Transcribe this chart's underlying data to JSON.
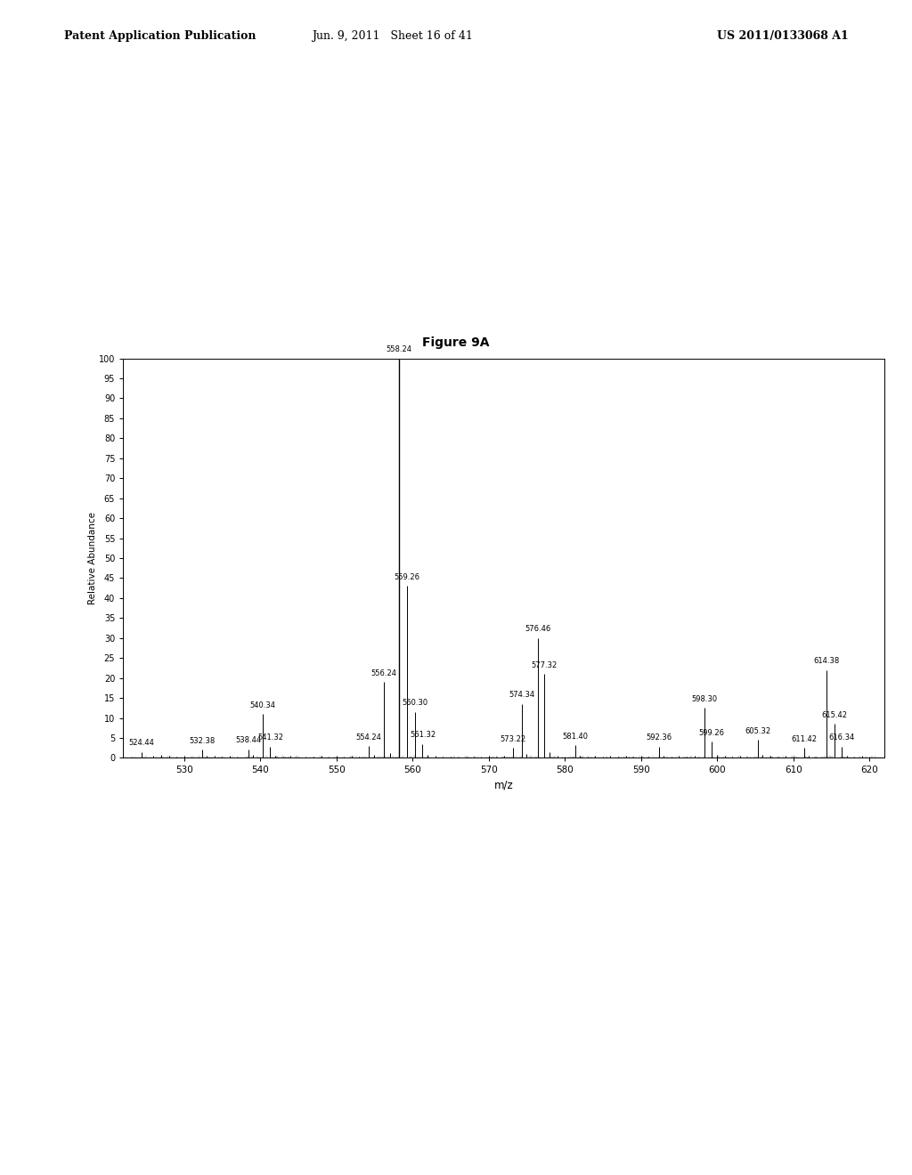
{
  "title": "Figure 9A",
  "xlabel": "m/z",
  "ylabel": "Relative Abundance",
  "xlim": [
    522,
    622
  ],
  "ylim": [
    0,
    100
  ],
  "xticks": [
    530,
    540,
    550,
    560,
    570,
    580,
    590,
    600,
    610,
    620
  ],
  "yticks": [
    0,
    5,
    10,
    15,
    20,
    25,
    30,
    35,
    40,
    45,
    50,
    55,
    60,
    65,
    70,
    75,
    80,
    85,
    90,
    95,
    100
  ],
  "header_left": "Patent Application Publication",
  "header_mid": "Jun. 9, 2011   Sheet 16 of 41",
  "header_right": "US 2011/0133068 A1",
  "peaks": [
    {
      "mz": 524.44,
      "intensity": 1.5,
      "label": "524.44",
      "label_show": true
    },
    {
      "mz": 526.0,
      "intensity": 0.5,
      "label": "",
      "label_show": false
    },
    {
      "mz": 527.0,
      "intensity": 0.8,
      "label": "",
      "label_show": false
    },
    {
      "mz": 528.0,
      "intensity": 0.6,
      "label": "",
      "label_show": false
    },
    {
      "mz": 529.0,
      "intensity": 0.4,
      "label": "",
      "label_show": false
    },
    {
      "mz": 530.0,
      "intensity": 0.5,
      "label": "",
      "label_show": false
    },
    {
      "mz": 531.0,
      "intensity": 0.3,
      "label": "",
      "label_show": false
    },
    {
      "mz": 532.38,
      "intensity": 2.0,
      "label": "532.38",
      "label_show": true
    },
    {
      "mz": 533.0,
      "intensity": 0.5,
      "label": "",
      "label_show": false
    },
    {
      "mz": 534.0,
      "intensity": 0.6,
      "label": "",
      "label_show": false
    },
    {
      "mz": 535.0,
      "intensity": 0.4,
      "label": "",
      "label_show": false
    },
    {
      "mz": 536.0,
      "intensity": 0.5,
      "label": "",
      "label_show": false
    },
    {
      "mz": 537.0,
      "intensity": 0.3,
      "label": "",
      "label_show": false
    },
    {
      "mz": 538.44,
      "intensity": 2.2,
      "label": "538.44",
      "label_show": true
    },
    {
      "mz": 539.0,
      "intensity": 0.7,
      "label": "",
      "label_show": false
    },
    {
      "mz": 540.34,
      "intensity": 11.0,
      "label": "540.34",
      "label_show": true
    },
    {
      "mz": 541.32,
      "intensity": 2.8,
      "label": "541.32",
      "label_show": true
    },
    {
      "mz": 542.0,
      "intensity": 0.6,
      "label": "",
      "label_show": false
    },
    {
      "mz": 543.0,
      "intensity": 0.4,
      "label": "",
      "label_show": false
    },
    {
      "mz": 544.0,
      "intensity": 0.5,
      "label": "",
      "label_show": false
    },
    {
      "mz": 545.0,
      "intensity": 0.3,
      "label": "",
      "label_show": false
    },
    {
      "mz": 546.0,
      "intensity": 0.4,
      "label": "",
      "label_show": false
    },
    {
      "mz": 547.0,
      "intensity": 0.3,
      "label": "",
      "label_show": false
    },
    {
      "mz": 548.0,
      "intensity": 0.5,
      "label": "",
      "label_show": false
    },
    {
      "mz": 549.0,
      "intensity": 0.4,
      "label": "",
      "label_show": false
    },
    {
      "mz": 550.0,
      "intensity": 0.5,
      "label": "",
      "label_show": false
    },
    {
      "mz": 551.0,
      "intensity": 0.4,
      "label": "",
      "label_show": false
    },
    {
      "mz": 552.0,
      "intensity": 0.5,
      "label": "",
      "label_show": false
    },
    {
      "mz": 553.0,
      "intensity": 0.4,
      "label": "",
      "label_show": false
    },
    {
      "mz": 554.24,
      "intensity": 3.0,
      "label": "554.24",
      "label_show": true
    },
    {
      "mz": 555.0,
      "intensity": 0.8,
      "label": "",
      "label_show": false
    },
    {
      "mz": 556.24,
      "intensity": 19.0,
      "label": "556.24",
      "label_show": true
    },
    {
      "mz": 557.0,
      "intensity": 1.2,
      "label": "",
      "label_show": false
    },
    {
      "mz": 558.24,
      "intensity": 100.0,
      "label": "558.24",
      "label_show": true
    },
    {
      "mz": 559.26,
      "intensity": 43.0,
      "label": "559.26",
      "label_show": true
    },
    {
      "mz": 560.3,
      "intensity": 11.5,
      "label": "560.30",
      "label_show": true
    },
    {
      "mz": 561.32,
      "intensity": 3.5,
      "label": "561.32",
      "label_show": true
    },
    {
      "mz": 562.0,
      "intensity": 0.8,
      "label": "",
      "label_show": false
    },
    {
      "mz": 563.0,
      "intensity": 0.5,
      "label": "",
      "label_show": false
    },
    {
      "mz": 564.0,
      "intensity": 0.4,
      "label": "",
      "label_show": false
    },
    {
      "mz": 565.0,
      "intensity": 0.3,
      "label": "",
      "label_show": false
    },
    {
      "mz": 566.0,
      "intensity": 0.4,
      "label": "",
      "label_show": false
    },
    {
      "mz": 567.0,
      "intensity": 0.3,
      "label": "",
      "label_show": false
    },
    {
      "mz": 568.0,
      "intensity": 0.4,
      "label": "",
      "label_show": false
    },
    {
      "mz": 569.0,
      "intensity": 0.3,
      "label": "",
      "label_show": false
    },
    {
      "mz": 570.0,
      "intensity": 0.5,
      "label": "",
      "label_show": false
    },
    {
      "mz": 571.0,
      "intensity": 0.4,
      "label": "",
      "label_show": false
    },
    {
      "mz": 572.0,
      "intensity": 0.5,
      "label": "",
      "label_show": false
    },
    {
      "mz": 573.22,
      "intensity": 2.5,
      "label": "573.22",
      "label_show": true
    },
    {
      "mz": 574.34,
      "intensity": 13.5,
      "label": "574.34",
      "label_show": true
    },
    {
      "mz": 575.0,
      "intensity": 1.0,
      "label": "",
      "label_show": false
    },
    {
      "mz": 576.46,
      "intensity": 30.0,
      "label": "576.46",
      "label_show": true
    },
    {
      "mz": 577.32,
      "intensity": 21.0,
      "label": "577.32",
      "label_show": true
    },
    {
      "mz": 578.0,
      "intensity": 1.5,
      "label": "",
      "label_show": false
    },
    {
      "mz": 579.0,
      "intensity": 0.5,
      "label": "",
      "label_show": false
    },
    {
      "mz": 580.0,
      "intensity": 0.4,
      "label": "",
      "label_show": false
    },
    {
      "mz": 581.4,
      "intensity": 3.2,
      "label": "581.40",
      "label_show": true
    },
    {
      "mz": 582.0,
      "intensity": 0.5,
      "label": "",
      "label_show": false
    },
    {
      "mz": 583.0,
      "intensity": 0.4,
      "label": "",
      "label_show": false
    },
    {
      "mz": 584.0,
      "intensity": 0.5,
      "label": "",
      "label_show": false
    },
    {
      "mz": 585.0,
      "intensity": 0.4,
      "label": "",
      "label_show": false
    },
    {
      "mz": 586.0,
      "intensity": 0.5,
      "label": "",
      "label_show": false
    },
    {
      "mz": 587.0,
      "intensity": 0.4,
      "label": "",
      "label_show": false
    },
    {
      "mz": 588.0,
      "intensity": 0.5,
      "label": "",
      "label_show": false
    },
    {
      "mz": 589.0,
      "intensity": 0.4,
      "label": "",
      "label_show": false
    },
    {
      "mz": 590.0,
      "intensity": 0.5,
      "label": "",
      "label_show": false
    },
    {
      "mz": 591.0,
      "intensity": 0.4,
      "label": "",
      "label_show": false
    },
    {
      "mz": 592.36,
      "intensity": 2.8,
      "label": "592.36",
      "label_show": true
    },
    {
      "mz": 593.0,
      "intensity": 0.5,
      "label": "",
      "label_show": false
    },
    {
      "mz": 594.0,
      "intensity": 0.4,
      "label": "",
      "label_show": false
    },
    {
      "mz": 595.0,
      "intensity": 0.5,
      "label": "",
      "label_show": false
    },
    {
      "mz": 596.0,
      "intensity": 0.4,
      "label": "",
      "label_show": false
    },
    {
      "mz": 597.0,
      "intensity": 0.5,
      "label": "",
      "label_show": false
    },
    {
      "mz": 598.3,
      "intensity": 12.5,
      "label": "598.30",
      "label_show": true
    },
    {
      "mz": 599.26,
      "intensity": 4.0,
      "label": "599.26",
      "label_show": true
    },
    {
      "mz": 600.0,
      "intensity": 0.8,
      "label": "",
      "label_show": false
    },
    {
      "mz": 601.0,
      "intensity": 0.5,
      "label": "",
      "label_show": false
    },
    {
      "mz": 602.0,
      "intensity": 0.4,
      "label": "",
      "label_show": false
    },
    {
      "mz": 603.0,
      "intensity": 0.5,
      "label": "",
      "label_show": false
    },
    {
      "mz": 604.0,
      "intensity": 0.4,
      "label": "",
      "label_show": false
    },
    {
      "mz": 605.32,
      "intensity": 4.5,
      "label": "605.32",
      "label_show": true
    },
    {
      "mz": 606.0,
      "intensity": 0.8,
      "label": "",
      "label_show": false
    },
    {
      "mz": 607.0,
      "intensity": 0.5,
      "label": "",
      "label_show": false
    },
    {
      "mz": 608.0,
      "intensity": 0.4,
      "label": "",
      "label_show": false
    },
    {
      "mz": 609.0,
      "intensity": 0.5,
      "label": "",
      "label_show": false
    },
    {
      "mz": 610.0,
      "intensity": 0.4,
      "label": "",
      "label_show": false
    },
    {
      "mz": 611.42,
      "intensity": 2.5,
      "label": "611.42",
      "label_show": true
    },
    {
      "mz": 612.0,
      "intensity": 0.5,
      "label": "",
      "label_show": false
    },
    {
      "mz": 613.0,
      "intensity": 0.4,
      "label": "",
      "label_show": false
    },
    {
      "mz": 614.38,
      "intensity": 22.0,
      "label": "614.38",
      "label_show": true
    },
    {
      "mz": 615.42,
      "intensity": 8.5,
      "label": "615.42",
      "label_show": true
    },
    {
      "mz": 616.34,
      "intensity": 2.8,
      "label": "616.34",
      "label_show": true
    },
    {
      "mz": 617.0,
      "intensity": 0.5,
      "label": "",
      "label_show": false
    },
    {
      "mz": 618.0,
      "intensity": 0.4,
      "label": "",
      "label_show": false
    },
    {
      "mz": 619.0,
      "intensity": 0.5,
      "label": "",
      "label_show": false
    },
    {
      "mz": 620.0,
      "intensity": 0.4,
      "label": "",
      "label_show": false
    }
  ]
}
